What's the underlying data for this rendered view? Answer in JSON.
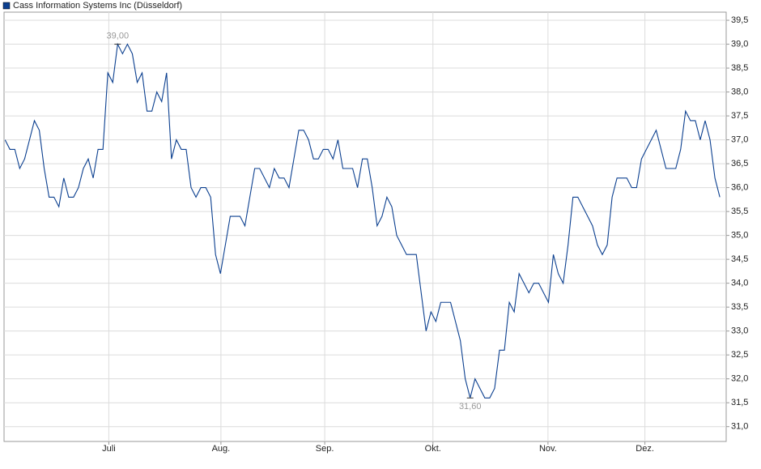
{
  "chart_data": {
    "type": "line",
    "title": "Cass Information Systems Inc (Düsseldorf)",
    "series": [
      {
        "name": "Cass Information Systems Inc (Düsseldorf)",
        "color": "#0b3f8f",
        "values": [
          37.0,
          36.8,
          36.8,
          36.4,
          36.6,
          37.0,
          37.4,
          37.2,
          36.4,
          35.8,
          35.8,
          35.6,
          36.2,
          35.8,
          35.8,
          36.0,
          36.4,
          36.6,
          36.2,
          36.8,
          36.8,
          38.4,
          38.2,
          39.0,
          38.8,
          39.0,
          38.8,
          38.2,
          38.4,
          37.6,
          37.6,
          38.0,
          37.8,
          38.4,
          36.6,
          37.0,
          36.8,
          36.8,
          36.0,
          35.8,
          36.0,
          36.0,
          35.8,
          34.6,
          34.2,
          34.8,
          35.4,
          35.4,
          35.4,
          35.2,
          35.8,
          36.4,
          36.4,
          36.2,
          36.0,
          36.4,
          36.2,
          36.2,
          36.0,
          36.6,
          37.2,
          37.2,
          37.0,
          36.6,
          36.6,
          36.8,
          36.8,
          36.6,
          37.0,
          36.4,
          36.4,
          36.4,
          36.0,
          36.6,
          36.6,
          36.0,
          35.2,
          35.4,
          35.8,
          35.6,
          35.0,
          34.8,
          34.6,
          34.6,
          34.6,
          33.8,
          33.0,
          33.4,
          33.2,
          33.6,
          33.6,
          33.6,
          33.2,
          32.8,
          32.0,
          31.6,
          32.0,
          31.8,
          31.6,
          31.6,
          31.8,
          32.6,
          32.6,
          33.6,
          33.4,
          34.2,
          34.0,
          33.8,
          34.0,
          34.0,
          33.8,
          33.6,
          34.6,
          34.2,
          34.0,
          34.8,
          35.8,
          35.8,
          35.6,
          35.4,
          35.2,
          34.8,
          34.6,
          34.8,
          35.8,
          36.2,
          36.2,
          36.2,
          36.0,
          36.0,
          36.6,
          36.8,
          37.0,
          37.2,
          36.8,
          36.4,
          36.4,
          36.4,
          36.8,
          37.6,
          37.4,
          37.4,
          37.0,
          37.4,
          37.0,
          36.2,
          35.8
        ]
      }
    ],
    "annotations": [
      {
        "label": "39,00",
        "x": 23,
        "y": 39.0,
        "position": "above"
      },
      {
        "label": "31,60",
        "x": 95,
        "y": 31.6,
        "position": "below"
      }
    ],
    "xlim": [
      -0.2,
      147.3
    ],
    "xticks": [
      {
        "value": 21.2,
        "label": "Juli"
      },
      {
        "value": 44.1,
        "label": "Aug."
      },
      {
        "value": 65.3,
        "label": "Sep."
      },
      {
        "value": 87.4,
        "label": "Okt."
      },
      {
        "value": 110.9,
        "label": "Nov."
      },
      {
        "value": 130.7,
        "label": "Dez."
      }
    ],
    "ylim": [
      30.69,
      39.67
    ],
    "yticks": [
      {
        "value": 31.0,
        "label": "31,0"
      },
      {
        "value": 31.5,
        "label": "31,5"
      },
      {
        "value": 32.0,
        "label": "32,0"
      },
      {
        "value": 32.5,
        "label": "32,5"
      },
      {
        "value": 33.0,
        "label": "33,0"
      },
      {
        "value": 33.5,
        "label": "33,5"
      },
      {
        "value": 34.0,
        "label": "34,0"
      },
      {
        "value": 34.5,
        "label": "34,5"
      },
      {
        "value": 35.0,
        "label": "35,0"
      },
      {
        "value": 35.5,
        "label": "35,5"
      },
      {
        "value": 36.0,
        "label": "36,0"
      },
      {
        "value": 36.5,
        "label": "36,5"
      },
      {
        "value": 37.0,
        "label": "37,0"
      },
      {
        "value": 37.5,
        "label": "37,5"
      },
      {
        "value": 38.0,
        "label": "38,0"
      },
      {
        "value": 38.5,
        "label": "38,5"
      },
      {
        "value": 39.0,
        "label": "39,0"
      },
      {
        "value": 39.5,
        "label": "39,5"
      }
    ],
    "grid": true
  }
}
